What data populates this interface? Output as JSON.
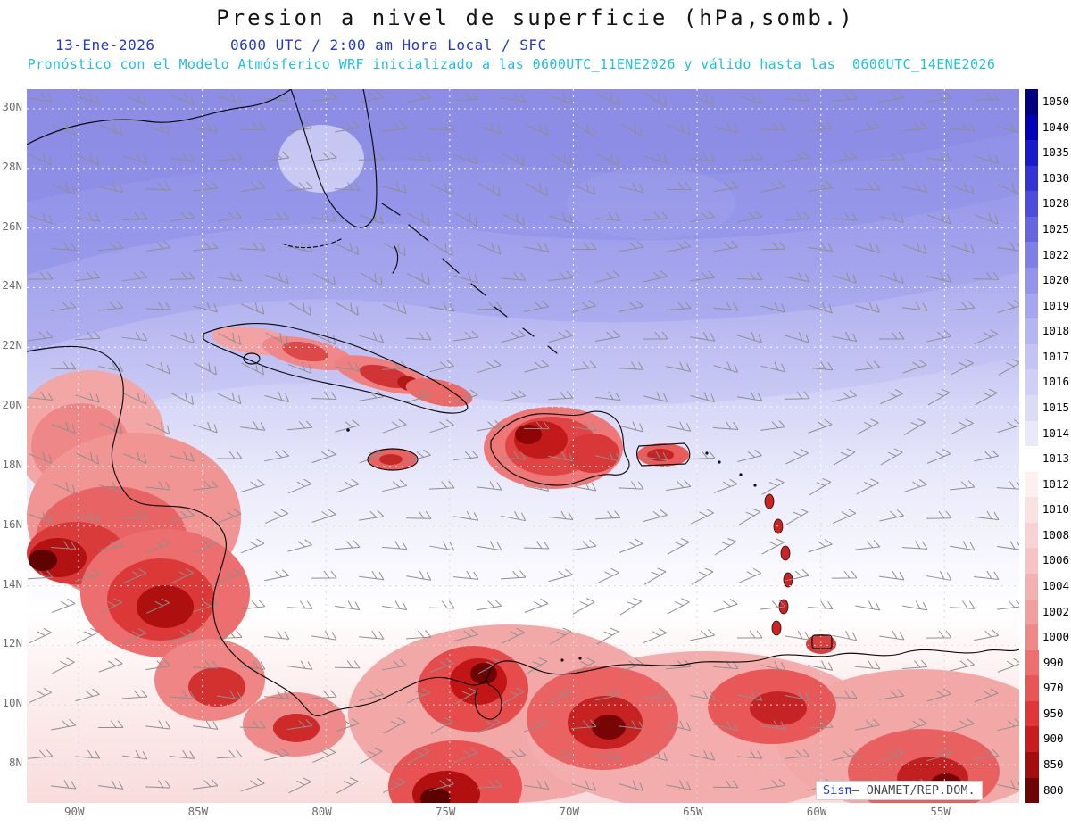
{
  "header": {
    "title": "Presion a nivel de superficie (hPa,somb.)",
    "date": "13-Ene-2026",
    "time_line": "0600 UTC / 2:00 am Hora Local / SFC",
    "forecast_line": "Pronóstico con el Modelo Atmósferico WRF inicializado a las 0600UTC_11ENE2026 y válido hasta las  0600UTC_14ENE2026"
  },
  "map": {
    "lat_labels": [
      "30N",
      "28N",
      "26N",
      "24N",
      "22N",
      "20N",
      "18N",
      "16N",
      "14N",
      "12N",
      "10N",
      "8N"
    ],
    "lon_labels": [
      "90W",
      "85W",
      "80W",
      "75W",
      "70W",
      "65W",
      "60W",
      "55W"
    ],
    "attribution": {
      "brand": "Sisπ",
      "rest": "– ONAMET/REP.DOM."
    }
  },
  "colorbar": {
    "units": "hPa",
    "levels": [
      {
        "value": "1050",
        "color": "#000080"
      },
      {
        "value": "1040",
        "color": "#0000bb"
      },
      {
        "value": "1035",
        "color": "#1a1acd"
      },
      {
        "value": "1030",
        "color": "#3333d6"
      },
      {
        "value": "1028",
        "color": "#4d4ddd"
      },
      {
        "value": "1025",
        "color": "#6666e3"
      },
      {
        "value": "1022",
        "color": "#7f7fe8"
      },
      {
        "value": "1020",
        "color": "#9494ed"
      },
      {
        "value": "1019",
        "color": "#a6a6f0"
      },
      {
        "value": "1018",
        "color": "#b5b5f3"
      },
      {
        "value": "1017",
        "color": "#c3c3f5"
      },
      {
        "value": "1016",
        "color": "#d0d0f7"
      },
      {
        "value": "1015",
        "color": "#dcdcf9"
      },
      {
        "value": "1014",
        "color": "#e9e9fb"
      },
      {
        "value": "1013",
        "color": "#ffffff"
      },
      {
        "value": "1012",
        "color": "#fdf0f0"
      },
      {
        "value": "1010",
        "color": "#fbe2e2"
      },
      {
        "value": "1008",
        "color": "#f9d3d3"
      },
      {
        "value": "1006",
        "color": "#f7c3c3"
      },
      {
        "value": "1004",
        "color": "#f5b1b1"
      },
      {
        "value": "1002",
        "color": "#f39e9e"
      },
      {
        "value": "1000",
        "color": "#f08888"
      },
      {
        "value": "990",
        "color": "#ed6f6f"
      },
      {
        "value": "970",
        "color": "#e95454"
      },
      {
        "value": "950",
        "color": "#e23636"
      },
      {
        "value": "900",
        "color": "#c91c1c"
      },
      {
        "value": "850",
        "color": "#a30d0d"
      },
      {
        "value": "800",
        "color": "#6f0404"
      }
    ]
  },
  "chart_data": {
    "type": "heatmap",
    "title": "Presion a nivel de superficie (hPa,somb.)",
    "valid_time": "13-Ene-2026 0600 UTC / 2:00 am Hora Local / SFC",
    "model_init": "0600UTC_11ENE2026",
    "valid_until": "0600UTC_14ENE2026",
    "x_ticks": [
      "90W",
      "85W",
      "80W",
      "75W",
      "70W",
      "65W",
      "60W",
      "55W"
    ],
    "y_ticks": [
      "30N",
      "28N",
      "26N",
      "24N",
      "22N",
      "20N",
      "18N",
      "16N",
      "14N",
      "12N",
      "10N",
      "8N"
    ],
    "colorbar_levels_hPa": [
      1050,
      1040,
      1035,
      1030,
      1028,
      1025,
      1022,
      1020,
      1019,
      1018,
      1017,
      1016,
      1015,
      1014,
      1013,
      1012,
      1010,
      1008,
      1006,
      1004,
      1002,
      1000,
      990,
      970,
      950,
      900,
      850,
      800
    ],
    "legend_position": "right",
    "grid": true
  }
}
